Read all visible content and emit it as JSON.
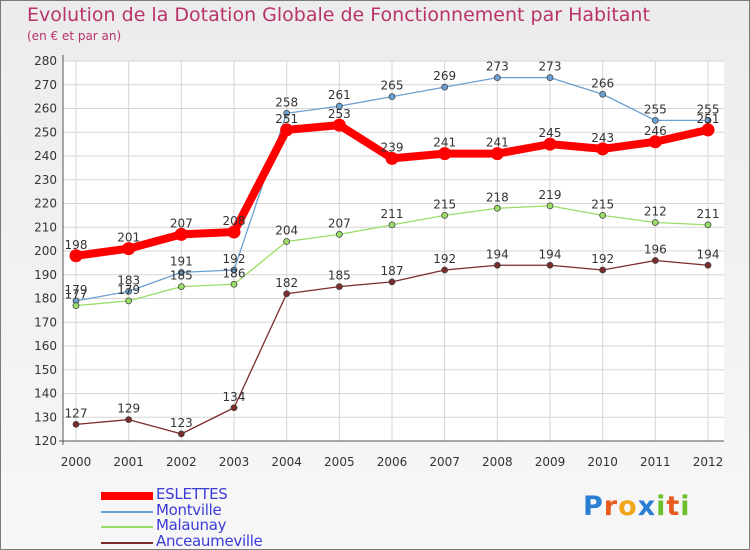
{
  "header": {
    "title": "Evolution de la Dotation Globale de Fonctionnement par Habitant",
    "subtitle": "(en € et par an)"
  },
  "colors": {
    "title": "#b8336a",
    "legend_text": "#3b3bd6",
    "ESLETTES": "#ff0000",
    "Montville": "#6aa0d2",
    "Malaunay": "#99dd66",
    "Anceaumeville": "#7a2c2c"
  },
  "logo": {
    "text": "Proxiti",
    "letters": [
      "P",
      "r",
      "o",
      "x",
      "i",
      "t",
      "i"
    ]
  },
  "chart_data": {
    "type": "line",
    "title": "Evolution de la Dotation Globale de Fonctionnement par Habitant",
    "subtitle": "(en € et par an)",
    "xlabel": "",
    "ylabel": "",
    "ylim": [
      120,
      280
    ],
    "ytick_step": 10,
    "grid": true,
    "legend_position": "bottom-left",
    "x": [
      "2000",
      "2001",
      "2002",
      "2003",
      "2004",
      "2005",
      "2006",
      "2007",
      "2008",
      "2009",
      "2010",
      "2011",
      "2012"
    ],
    "series": [
      {
        "name": "ESLETTES",
        "values": [
          198,
          201,
          207,
          208,
          251,
          253,
          239,
          241,
          241,
          245,
          243,
          246,
          251
        ]
      },
      {
        "name": "Montville",
        "values": [
          179,
          183,
          191,
          192,
          258,
          261,
          265,
          269,
          273,
          273,
          266,
          255,
          255
        ]
      },
      {
        "name": "Malaunay",
        "values": [
          177,
          179,
          185,
          186,
          204,
          207,
          211,
          215,
          218,
          219,
          215,
          212,
          211
        ]
      },
      {
        "name": "Anceaumeville",
        "values": [
          127,
          129,
          123,
          134,
          182,
          185,
          187,
          192,
          194,
          194,
          192,
          196,
          194
        ]
      }
    ]
  }
}
